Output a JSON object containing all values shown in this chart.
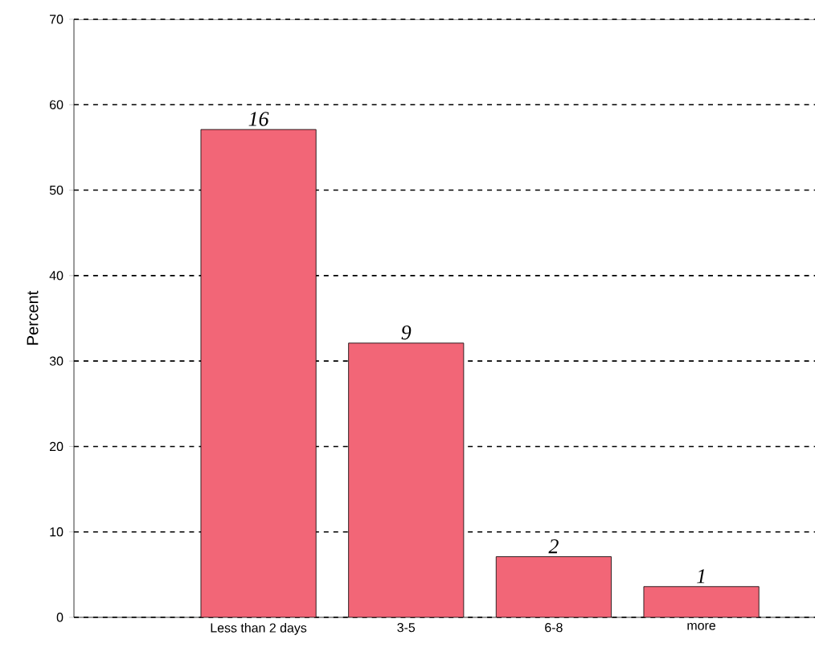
{
  "chart_data": {
    "type": "bar",
    "ylabel": "Percent",
    "categories": [
      "Less than 2 days",
      "3-5",
      "6-8",
      "more"
    ],
    "values": [
      57.1,
      32.1,
      7.1,
      3.6
    ],
    "annotations": [
      "16",
      "9",
      "2",
      "1"
    ],
    "color": "#f26677",
    "ylim": [
      0,
      70
    ],
    "yticks": [
      0,
      10,
      20,
      30,
      40,
      50,
      60,
      70
    ],
    "grid": "y",
    "line_style": "dashed"
  }
}
